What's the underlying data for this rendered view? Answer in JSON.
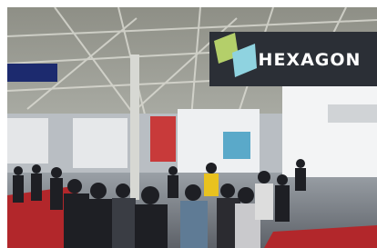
{
  "sign": {
    "text": "HEXAGON"
  }
}
